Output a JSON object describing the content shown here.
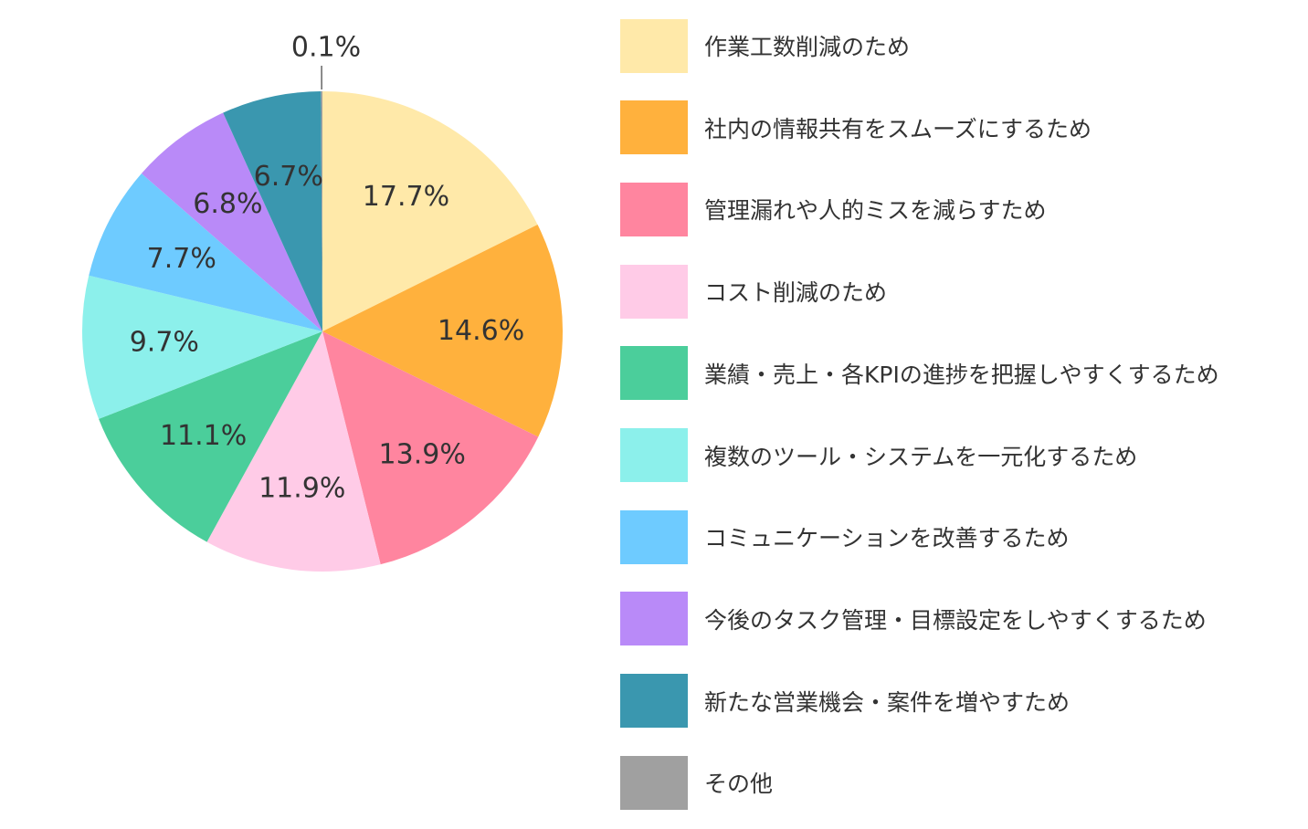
{
  "chart_data": {
    "type": "pie",
    "start_angle": "top",
    "direction": "clockwise",
    "legend_position": "right",
    "slices": [
      {
        "label": "作業工数削減のため",
        "value": 17.7,
        "display": "17.7%",
        "color": "#FFE9A9"
      },
      {
        "label": "社内の情報共有をスムーズにするため",
        "value": 14.6,
        "display": "14.6%",
        "color": "#FFB13D"
      },
      {
        "label": "管理漏れや人的ミスを減らすため",
        "value": 13.9,
        "display": "13.9%",
        "color": "#FF859F"
      },
      {
        "label": "コスト削減のため",
        "value": 11.9,
        "display": "11.9%",
        "color": "#FFCBE7"
      },
      {
        "label": "業績・売上・各KPIの進捗を把握しやすくするため",
        "value": 11.1,
        "display": "11.1%",
        "color": "#4BCE9B"
      },
      {
        "label": "複数のツール・システムを一元化するため",
        "value": 9.7,
        "display": "9.7%",
        "color": "#8CF0EB"
      },
      {
        "label": "コミュニケーションを改善するため",
        "value": 7.7,
        "display": "7.7%",
        "color": "#6ECBFF"
      },
      {
        "label": "今後のタスク管理・目標設定をしやすくするため",
        "value": 6.8,
        "display": "6.8%",
        "color": "#B98AF8"
      },
      {
        "label": "新たな営業機会・案件を増やすため",
        "value": 6.7,
        "display": "6.7%",
        "color": "#3A97AF"
      },
      {
        "label": "その他",
        "value": 0.1,
        "display": "0.1%",
        "color": "#A0A0A0"
      }
    ]
  }
}
